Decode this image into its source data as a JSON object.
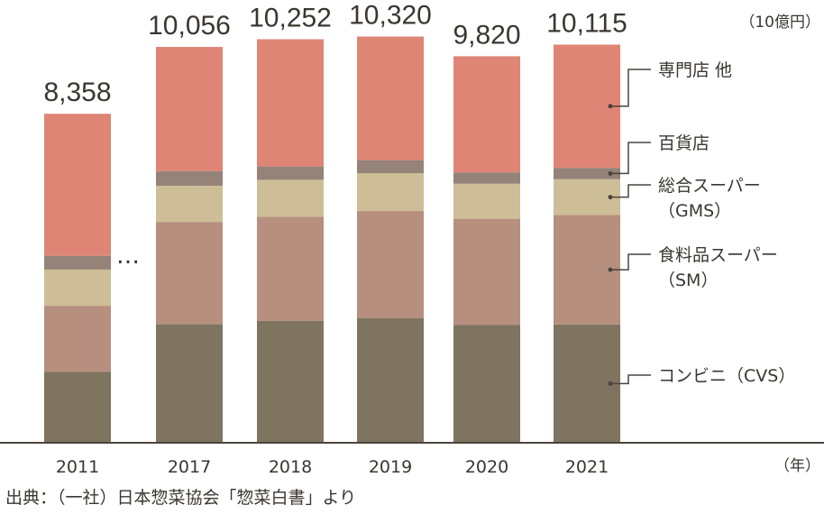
{
  "chart_data": {
    "type": "bar",
    "stacked": true,
    "unit": "（10億円）",
    "x_unit": "（年）",
    "categories": [
      "2011",
      "2017",
      "2018",
      "2019",
      "2020",
      "2021"
    ],
    "totals": [
      "8,358",
      "10,056",
      "10,252",
      "10,320",
      "9,820",
      "10,115"
    ],
    "gap_marker": "…",
    "series": [
      {
        "key": "cvs",
        "name": "コンビニ（CVS）",
        "color": "#7e7460",
        "values": [
          1800,
          3010,
          3100,
          3170,
          2990,
          3005
        ]
      },
      {
        "key": "sm",
        "name": "食料品スーパー（SM）",
        "color": "#b68f7e",
        "values": [
          1680,
          2600,
          2640,
          2720,
          2700,
          2780
        ]
      },
      {
        "key": "gms",
        "name": "総合スーパー（GMS）",
        "color": "#cdbe97",
        "values": [
          920,
          920,
          940,
          960,
          890,
          910
        ]
      },
      {
        "key": "dept",
        "name": "百貨店",
        "color": "#958379",
        "values": [
          350,
          370,
          340,
          330,
          290,
          290
        ]
      },
      {
        "key": "specialty",
        "name": "専門店 他",
        "color": "#df8575",
        "values": [
          3608,
          3156,
          3232,
          3140,
          2950,
          3130
        ]
      }
    ],
    "legend": [
      {
        "key": "specialty",
        "lines": [
          "専門店 他"
        ]
      },
      {
        "key": "dept",
        "lines": [
          "百貨店"
        ]
      },
      {
        "key": "gms",
        "lines": [
          "総合スーパー",
          "（GMS）"
        ]
      },
      {
        "key": "sm",
        "lines": [
          "食料品スーパー",
          "（SM）"
        ]
      },
      {
        "key": "cvs",
        "lines": [
          "コンビニ（CVS）"
        ]
      }
    ],
    "legend_placement": "right",
    "grid": false
  },
  "source": "出典：（一社）日本惣菜協会「惣菜白書」より"
}
